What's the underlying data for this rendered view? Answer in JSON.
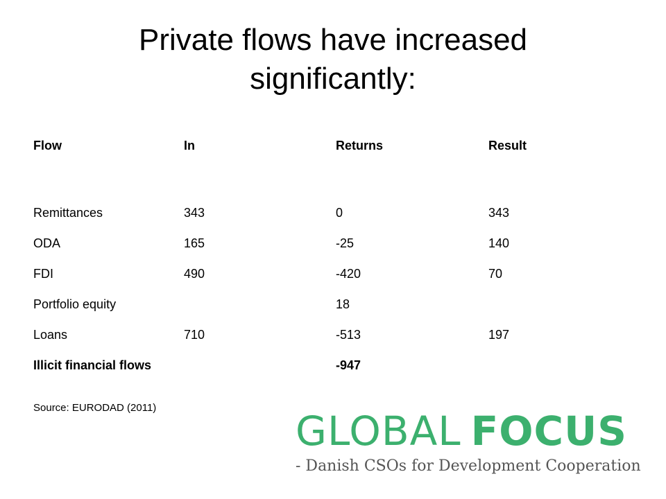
{
  "slide": {
    "title_line1": "Private flows have increased",
    "title_line2": "significantly:"
  },
  "table": {
    "headers": {
      "flow": "Flow",
      "in": "In",
      "returns": "Returns",
      "result": "Result"
    },
    "rows": [
      {
        "flow": "Remittances",
        "in": "343",
        "returns": "0",
        "result": "343"
      },
      {
        "flow": "ODA",
        "in": "165",
        "returns": "-25",
        "result": "140"
      },
      {
        "flow": "FDI",
        "in": "490",
        "returns": "-420",
        "result": "70"
      },
      {
        "flow": "Portfolio equity",
        "in": "",
        "returns": "18",
        "result": ""
      },
      {
        "flow": "Loans",
        "in": "710",
        "returns": "-513",
        "result": "197"
      },
      {
        "flow": "Illicit financial flows",
        "in": "",
        "returns": "-947",
        "result": "",
        "bold": true
      }
    ]
  },
  "source": "Source: EURODAD (2011)",
  "logo": {
    "word1": "GLOBAL",
    "word2": "FOCUS",
    "tagline": "- Danish CSOs for Development Cooperation",
    "color": "#3cb06e"
  }
}
